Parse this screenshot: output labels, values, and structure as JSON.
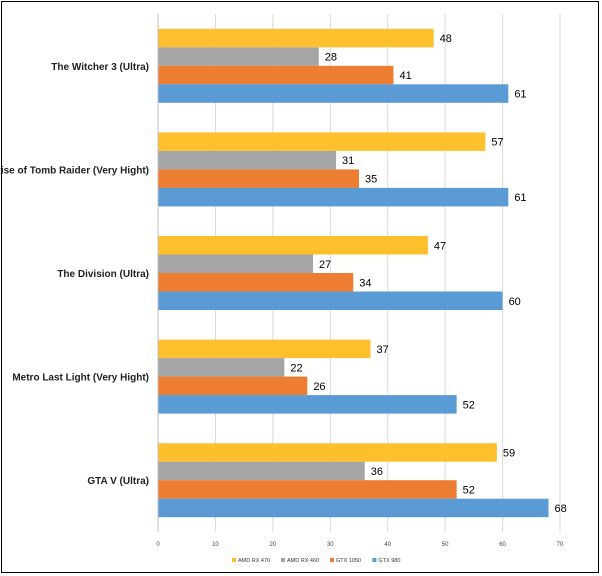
{
  "chart_data": {
    "type": "bar",
    "orientation": "horizontal",
    "categories": [
      "The Witcher 3 (Ultra)",
      "Rise of Tomb Raider (Very Hight)",
      "The Division (Ultra)",
      "Metro Last Light (Very Hight)",
      "GTA V (Ultra)"
    ],
    "series": [
      {
        "name": "AMD RX 470",
        "color": "#FFC02D",
        "values": [
          48,
          57,
          47,
          37,
          59
        ]
      },
      {
        "name": "AMD RX 460",
        "color": "#A5A5A5",
        "values": [
          28,
          31,
          27,
          22,
          36
        ]
      },
      {
        "name": "GTX 1050",
        "color": "#ED7D31",
        "values": [
          41,
          35,
          34,
          26,
          52
        ]
      },
      {
        "name": "GTX 980",
        "color": "#5B9BD5",
        "values": [
          61,
          61,
          60,
          52,
          68
        ]
      }
    ],
    "xlim": [
      0,
      70
    ],
    "xticks": [
      0,
      10,
      20,
      30,
      40,
      50,
      60,
      70
    ],
    "grid": true,
    "legend": "bottom",
    "title": "",
    "xlabel": "",
    "ylabel": ""
  }
}
